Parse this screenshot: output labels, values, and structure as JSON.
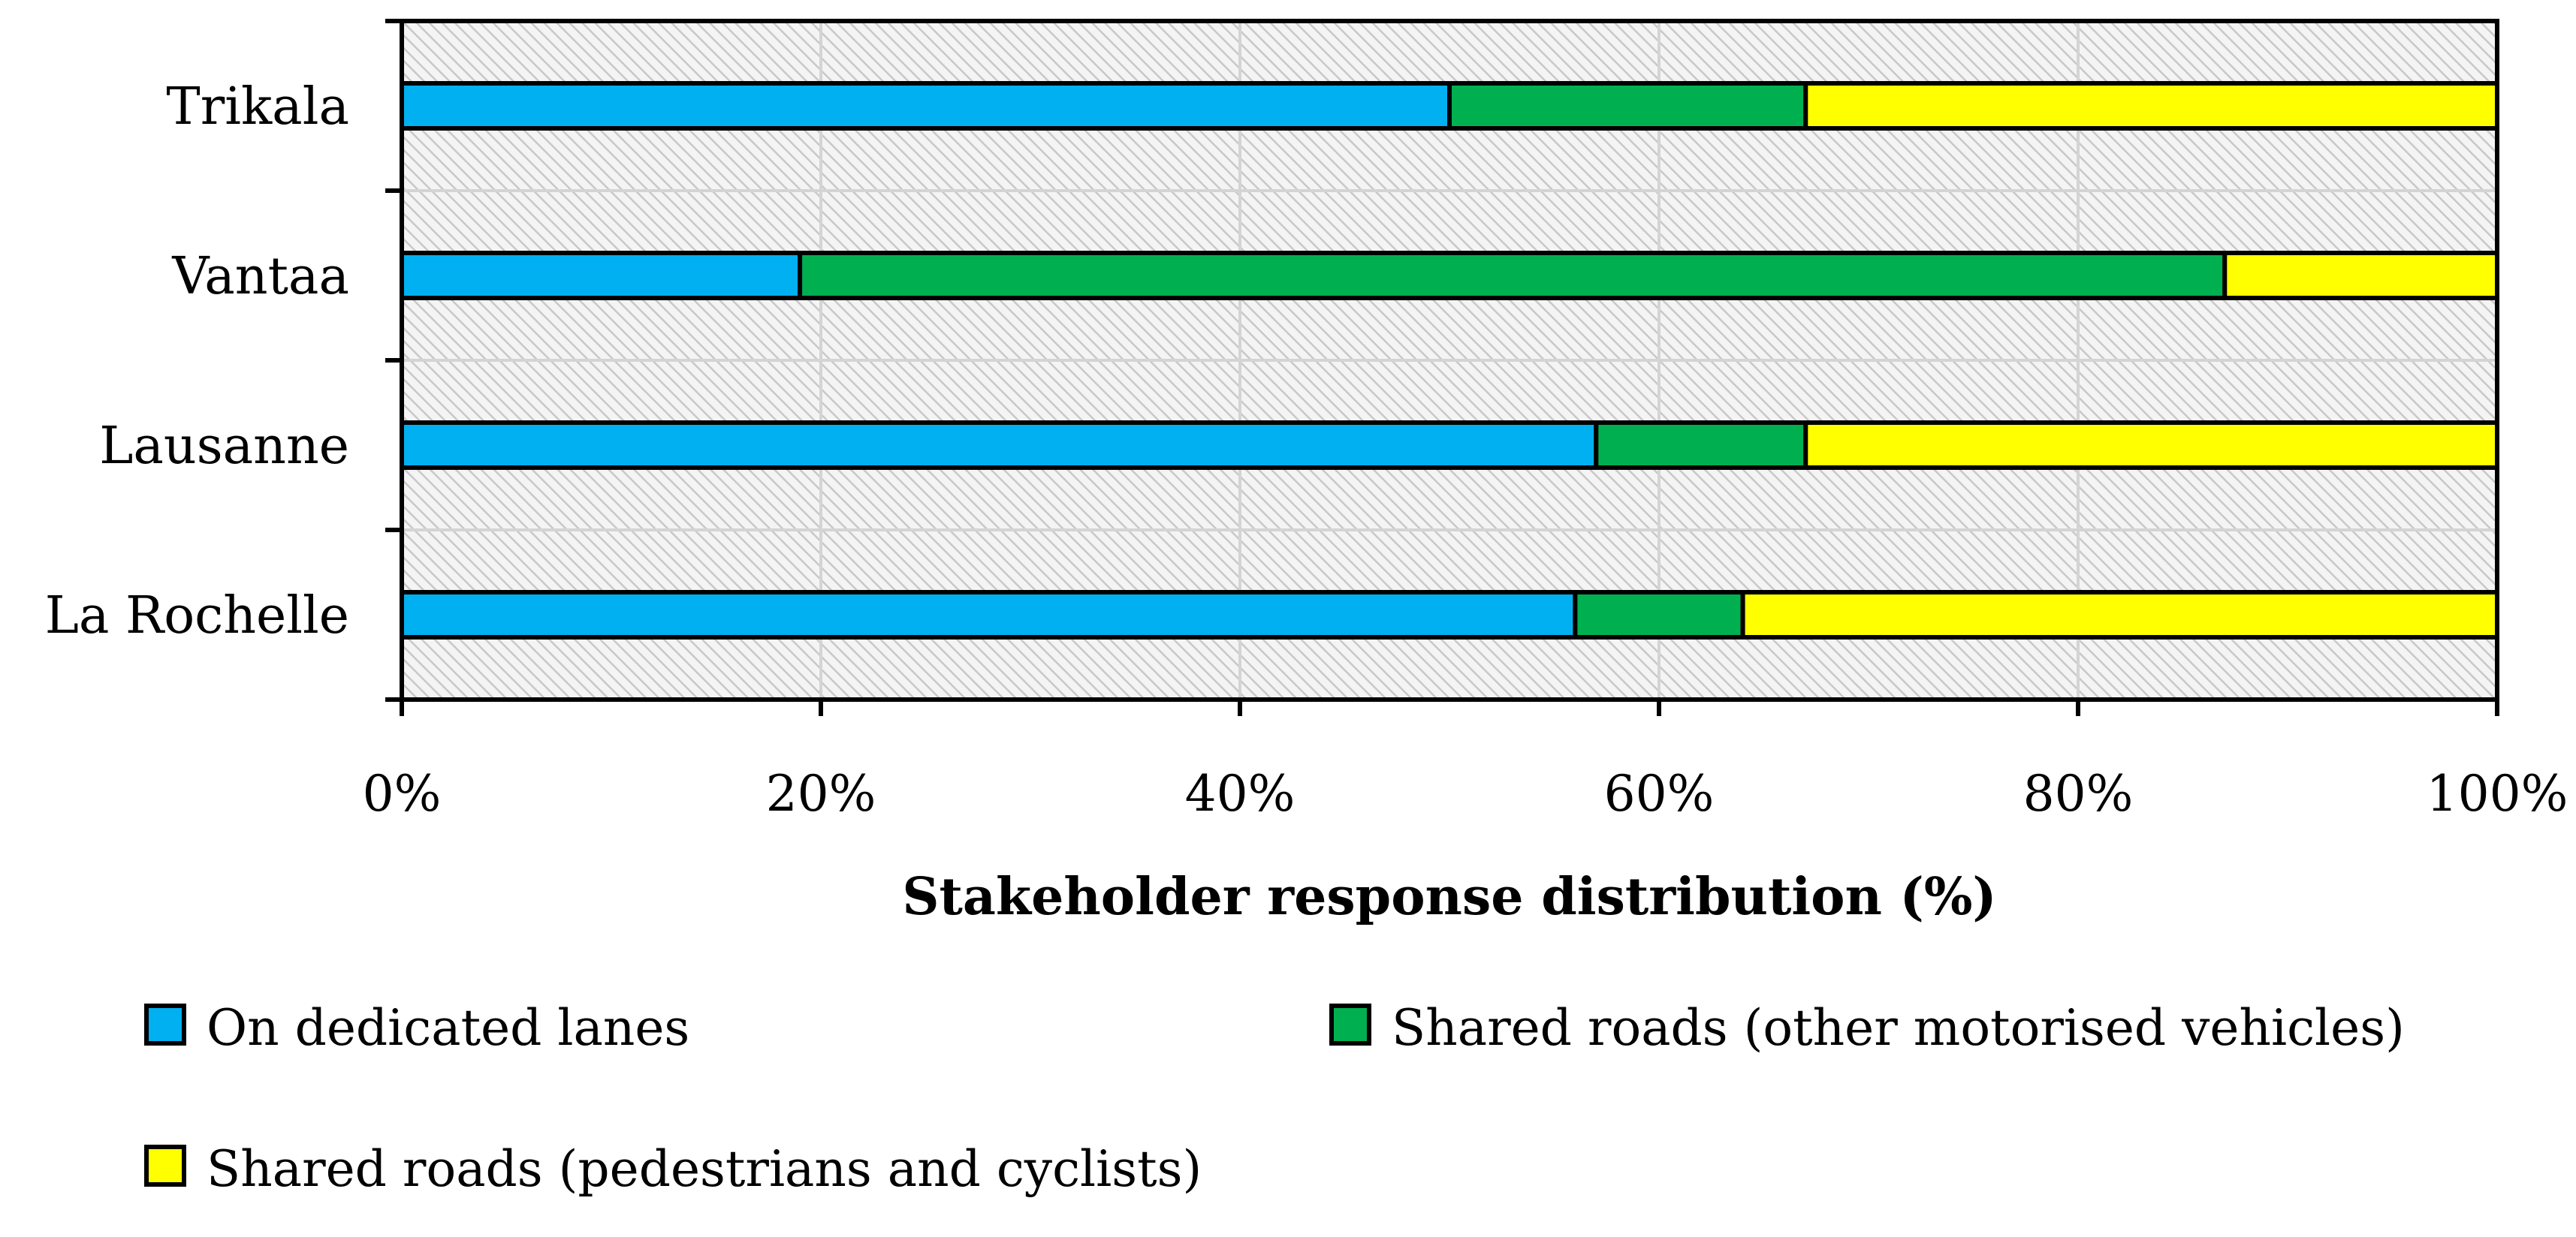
{
  "chart_data": {
    "type": "bar",
    "orientation": "horizontal",
    "stacked": true,
    "title": "",
    "xlabel": "Stakeholder response distribution (%)",
    "ylabel": "",
    "xlim": [
      0,
      100
    ],
    "x_tick_values": [
      0,
      20,
      40,
      60,
      80,
      100
    ],
    "x_tick_labels": [
      "0%",
      "20%",
      "40%",
      "60%",
      "80%",
      "100%"
    ],
    "categories": [
      "Trikala",
      "Vantaa",
      "Lausanne",
      "La Rochelle"
    ],
    "series": [
      {
        "name": "On dedicated lanes",
        "color": "#00B0F0",
        "values": [
          50,
          19,
          57,
          56
        ]
      },
      {
        "name": "Shared roads (other motorised vehicles)",
        "color": "#00B050",
        "values": [
          17,
          68,
          10,
          8
        ]
      },
      {
        "name": "Shared roads (pedestrians and cyclists)",
        "color": "#FFFF00",
        "values": [
          33,
          13,
          33,
          36
        ]
      }
    ],
    "grid": true,
    "legend_position": "bottom"
  }
}
